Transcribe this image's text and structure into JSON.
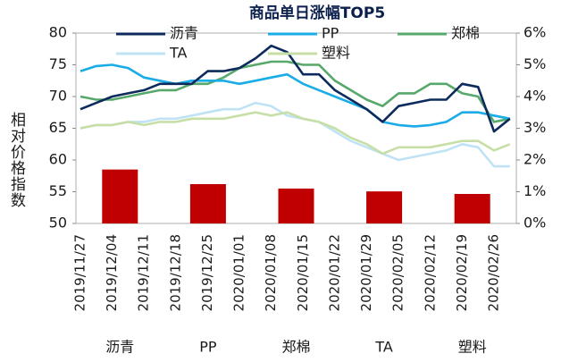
{
  "chart_data": {
    "type": "line",
    "title": "商品单日涨幅TOP5",
    "y_label": "相对价格指数",
    "x": [
      "2019/11/27",
      null,
      "2019/12/04",
      null,
      "2019/12/11",
      null,
      "2019/12/18",
      null,
      "2019/12/25",
      null,
      "2020/01/01",
      null,
      "2020/01/08",
      null,
      "2020/01/15",
      null,
      "2020/01/22",
      null,
      "2020/01/29",
      null,
      "2020/02/05",
      null,
      "2020/02/12",
      null,
      "2020/02/19",
      null,
      "2020/02/26",
      null
    ],
    "ylim": [
      50,
      80
    ],
    "yticks": [
      50,
      55,
      60,
      65,
      70,
      75,
      80
    ],
    "y2lim": [
      0,
      6
    ],
    "y2ticks": [
      {
        "value": 0,
        "label": "0%"
      },
      {
        "value": 1,
        "label": "1%"
      },
      {
        "value": 2,
        "label": "2%"
      },
      {
        "value": 3,
        "label": "3%"
      },
      {
        "value": 4,
        "label": "4%"
      },
      {
        "value": 5,
        "label": "5%"
      },
      {
        "value": 6,
        "label": "6%"
      }
    ],
    "series": [
      {
        "name": "沥青",
        "color": "#0d2a5c",
        "values": [
          68,
          69,
          70,
          70.5,
          71,
          72,
          72,
          72,
          74,
          74,
          74.5,
          76,
          78,
          77,
          73.5,
          73.5,
          71,
          69.5,
          68,
          66,
          68.5,
          69,
          69.5,
          69.5,
          72,
          71.5,
          64.5,
          66.5
        ]
      },
      {
        "name": "PP",
        "color": "#1aace6",
        "values": [
          74,
          74.8,
          75,
          74.5,
          73,
          72.5,
          72,
          72.5,
          72.5,
          72.5,
          72,
          72.5,
          73,
          73.5,
          72,
          71,
          70,
          69,
          68,
          66,
          65.5,
          65.3,
          65.5,
          66,
          67.5,
          67.5,
          67,
          66.5
        ]
      },
      {
        "name": "郑棉",
        "color": "#57a86b",
        "values": [
          70,
          69.5,
          69.5,
          70,
          70.5,
          71,
          71,
          72,
          72,
          73,
          74.5,
          75,
          75.5,
          75.5,
          75,
          75,
          72.5,
          71,
          69.5,
          68.5,
          70.5,
          70.5,
          72,
          72,
          70.5,
          70,
          66,
          66.5
        ]
      },
      {
        "name": "TA",
        "color": "#bfe3f4",
        "values": [
          65,
          65.5,
          65.5,
          66,
          66,
          66.5,
          66.5,
          67,
          67.5,
          68,
          68,
          69,
          68.5,
          67,
          66.5,
          66,
          64.5,
          63,
          62,
          61,
          60,
          60.5,
          61,
          61.5,
          62.5,
          62,
          59,
          59
        ]
      },
      {
        "name": "塑料",
        "color": "#c7dfa6",
        "values": [
          65,
          65.5,
          65.5,
          66,
          65.5,
          66,
          66,
          66.5,
          66.5,
          66.5,
          67,
          67.5,
          67,
          67.5,
          66.5,
          66,
          65,
          63.5,
          62.5,
          61,
          62,
          62,
          62,
          62.5,
          63,
          63,
          61.5,
          62.5
        ]
      }
    ],
    "bars": {
      "color": "#c00000",
      "axis": "y2",
      "categories": [
        "沥青",
        "PP",
        "郑棉",
        "TA",
        "塑料"
      ],
      "values": [
        1.7,
        1.24,
        1.1,
        1.01,
        0.93
      ]
    }
  }
}
